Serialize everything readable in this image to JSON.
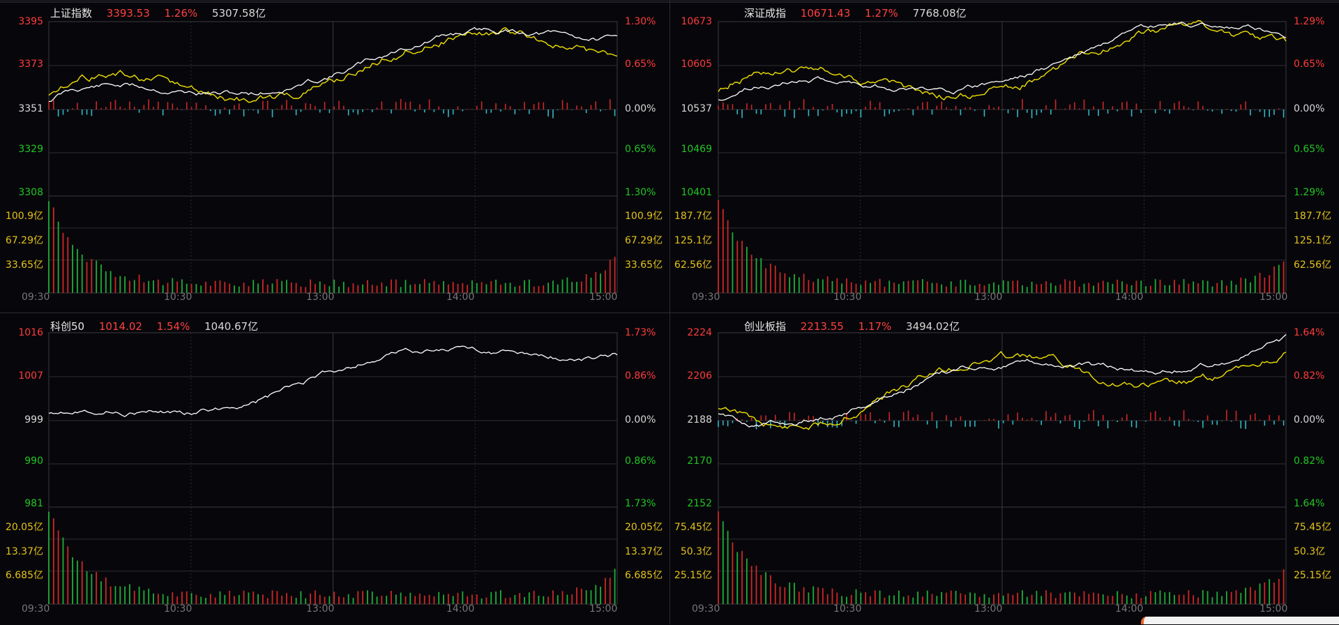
{
  "panels": [
    {
      "id": "sh",
      "name": "上证指数",
      "price": "3393.53",
      "change_pct": "1.26%",
      "turnover": "5307.58亿",
      "price_ticks": [
        "3395",
        "3373",
        "3351",
        "3329",
        "3308"
      ],
      "pct_ticks": [
        "1.30%",
        "0.65%",
        "0.00%",
        "0.65%",
        "1.30%"
      ],
      "volume_ticks": [
        "100.9亿",
        "67.29亿",
        "33.65亿"
      ],
      "time_ticks": [
        "09:30",
        "10:30",
        "13:00",
        "14:00",
        "15:00"
      ],
      "has_yellow": true,
      "seed": 11
    },
    {
      "id": "sz",
      "name": "深证成指",
      "price": "10671.43",
      "change_pct": "1.27%",
      "turnover": "7768.08亿",
      "price_ticks": [
        "10673",
        "10605",
        "10537",
        "10469",
        "10401"
      ],
      "pct_ticks": [
        "1.29%",
        "0.65%",
        "0.00%",
        "0.65%",
        "1.29%"
      ],
      "volume_ticks": [
        "187.7亿",
        "125.1亿",
        "62.56亿"
      ],
      "time_ticks": [
        "09:30",
        "10:30",
        "13:00",
        "14:00",
        "15:00"
      ],
      "has_yellow": true,
      "seed": 23
    },
    {
      "id": "kc",
      "name": "科创50",
      "price": "1014.02",
      "change_pct": "1.54%",
      "turnover": "1040.67亿",
      "price_ticks": [
        "1016",
        "1007",
        "999",
        "990",
        "981"
      ],
      "pct_ticks": [
        "1.73%",
        "0.86%",
        "0.00%",
        "0.86%",
        "1.73%"
      ],
      "volume_ticks": [
        "20.05亿",
        "13.37亿",
        "6.685亿"
      ],
      "time_ticks": [
        "09:30",
        "10:30",
        "13:00",
        "14:00",
        "15:00"
      ],
      "has_yellow": false,
      "seed": 37
    },
    {
      "id": "cy",
      "name": "创业板指",
      "price": "2213.55",
      "change_pct": "1.17%",
      "turnover": "3494.02亿",
      "price_ticks": [
        "2224",
        "2206",
        "2188",
        "2170",
        "2152"
      ],
      "pct_ticks": [
        "1.64%",
        "0.82%",
        "0.00%",
        "0.82%",
        "1.64%"
      ],
      "volume_ticks": [
        "75.45亿",
        "50.3亿",
        "25.15亿"
      ],
      "time_ticks": [
        "09:30",
        "10:30",
        "13:00",
        "14:00",
        "15:00"
      ],
      "has_yellow": true,
      "seed": 51
    }
  ],
  "colors": {
    "up": "#ff3b3b",
    "down": "#21c621",
    "white_line": "#ffffff",
    "yellow_line": "#f0e000",
    "bar_up": "#d02626",
    "bar_down_cyan": "#33b8c4",
    "vol_up": "#d02626",
    "vol_down": "#1fae3a",
    "grid": "#3a3a3f",
    "grid_dash": "#2d2d33"
  }
}
